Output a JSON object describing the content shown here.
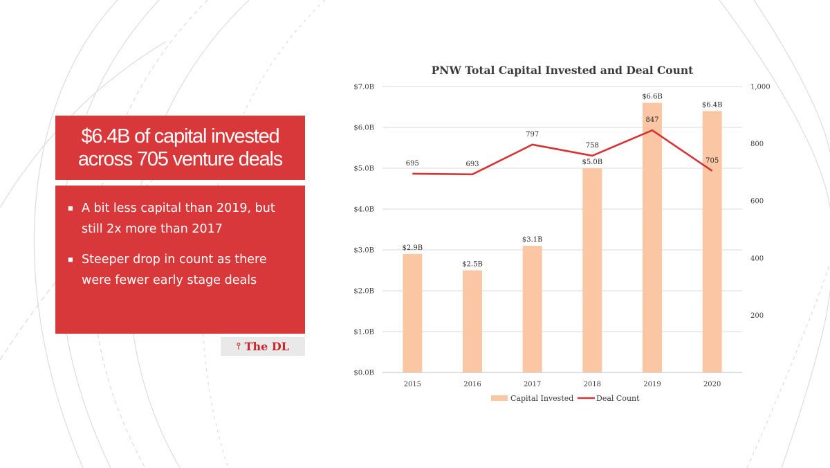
{
  "slide": {
    "headline_line1": "$6.4B of capital invested",
    "headline_line2": "across 705 venture deals",
    "bullets": [
      {
        "line1": "A bit less capital than 2019, but",
        "line2": "still 2x more than 2017"
      },
      {
        "line1": "Steeper drop in count as there",
        "line2": "were fewer early stage deals"
      }
    ],
    "logo_text": "The DL"
  },
  "colors": {
    "accent_red": "#d9383a",
    "bar": "#fbc6a4",
    "line": "#d63434",
    "grid": "#d9d9d9"
  },
  "chart_data": {
    "type": "bar",
    "title": "PNW Total Capital Invested and Deal Count",
    "categories": [
      "2015",
      "2016",
      "2017",
      "2018",
      "2019",
      "2020"
    ],
    "series": [
      {
        "name": "Capital Invested",
        "type": "bar",
        "axis": "left",
        "values": [
          2.9,
          2.5,
          3.1,
          5.0,
          6.6,
          6.4
        ],
        "labels": [
          "$2.9B",
          "$2.5B",
          "$3.1B",
          "$5.0B",
          "$6.6B",
          "$6.4B"
        ]
      },
      {
        "name": "Deal Count",
        "type": "line",
        "axis": "right",
        "values": [
          695,
          693,
          797,
          758,
          847,
          705
        ],
        "labels": [
          "695",
          "693",
          "797",
          "758",
          "847",
          "705"
        ]
      }
    ],
    "y_left": {
      "ylim": [
        0,
        7
      ],
      "ticks": [
        0,
        1,
        2,
        3,
        4,
        5,
        6,
        7
      ],
      "tick_labels": [
        "$0.0B",
        "$1.0B",
        "$2.0B",
        "$3.0B",
        "$4.0B",
        "$5.0B",
        "$6.0B",
        "$7.0B"
      ]
    },
    "y_right": {
      "ylim": [
        0,
        1000
      ],
      "ticks": [
        200,
        400,
        600,
        800,
        1000
      ],
      "tick_labels": [
        "200",
        "400",
        "600",
        "800",
        "1,000"
      ]
    },
    "grid": true,
    "legend": "bottom"
  }
}
